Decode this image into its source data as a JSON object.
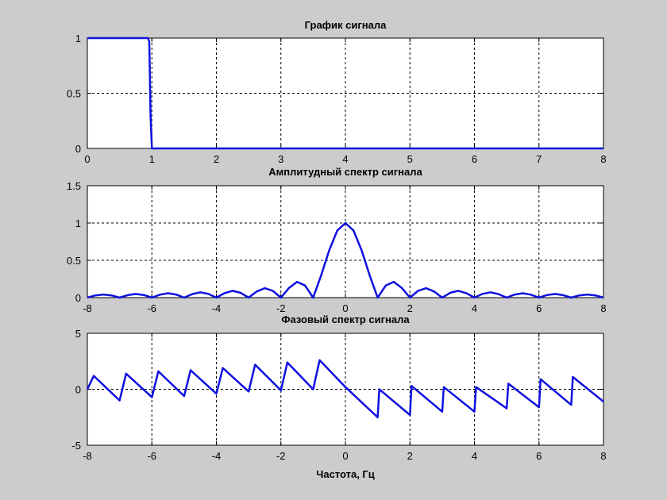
{
  "chart_data": [
    {
      "type": "line",
      "title": "График сигнала",
      "xlabel": "",
      "ylabel": "",
      "xlim": [
        0,
        8
      ],
      "ylim": [
        0,
        1
      ],
      "xticks": [
        0,
        1,
        2,
        3,
        4,
        5,
        6,
        7,
        8
      ],
      "yticks": [
        0,
        0.5,
        1
      ],
      "xticklabels": [
        "0",
        "1",
        "2",
        "3",
        "4",
        "5",
        "6",
        "7",
        "8"
      ],
      "yticklabels": [
        "0",
        "0.5",
        "1"
      ],
      "grid": true,
      "series": [
        {
          "color": "#1010e0",
          "x": [
            0,
            0.94,
            0.96,
            0.98,
            1.0,
            1.02,
            8
          ],
          "y": [
            1,
            1,
            0.97,
            0.3,
            0.0,
            0.0,
            0.0
          ]
        }
      ]
    },
    {
      "type": "line",
      "title": "Амплитудный спектр сигнала",
      "xlabel": "",
      "ylabel": "",
      "xlim": [
        -8,
        8
      ],
      "ylim": [
        0,
        1.5
      ],
      "xticks": [
        -8,
        -6,
        -4,
        -2,
        0,
        2,
        4,
        6,
        8
      ],
      "yticks": [
        0,
        0.5,
        1,
        1.5
      ],
      "xticklabels": [
        "-8",
        "-6",
        "-4",
        "-2",
        "0",
        "2",
        "4",
        "6",
        "8"
      ],
      "yticklabels": [
        "0",
        "0.5",
        "1",
        "1.5"
      ],
      "grid": true,
      "series": [
        {
          "color": "#1010e0",
          "x": [
            -8,
            -7.75,
            -7.5,
            -7.25,
            -7,
            -6.75,
            -6.5,
            -6.25,
            -6,
            -5.75,
            -5.5,
            -5.25,
            -5,
            -4.75,
            -4.5,
            -4.25,
            -4,
            -3.75,
            -3.5,
            -3.25,
            -3,
            -2.75,
            -2.5,
            -2.25,
            -2,
            -1.75,
            -1.5,
            -1.25,
            -1,
            -0.75,
            -0.5,
            -0.25,
            0,
            0.25,
            0.5,
            0.75,
            1,
            1.25,
            1.5,
            1.75,
            2,
            2.25,
            2.5,
            2.75,
            3,
            3.25,
            3.5,
            3.75,
            4,
            4.25,
            4.5,
            4.75,
            5,
            5.25,
            5.5,
            5.75,
            6,
            6.25,
            6.5,
            6.75,
            7,
            7.25,
            7.5,
            7.75,
            8
          ],
          "y": [
            0,
            0.03,
            0.042,
            0.03,
            0,
            0.033,
            0.049,
            0.035,
            0,
            0.039,
            0.058,
            0.041,
            0,
            0.047,
            0.071,
            0.05,
            0,
            0.06,
            0.091,
            0.065,
            0,
            0.082,
            0.127,
            0.09,
            0,
            0.129,
            0.212,
            0.162,
            0,
            0.3,
            0.637,
            0.9,
            1.0,
            0.9,
            0.637,
            0.3,
            0,
            0.162,
            0.212,
            0.129,
            0,
            0.09,
            0.127,
            0.082,
            0,
            0.065,
            0.091,
            0.06,
            0,
            0.05,
            0.071,
            0.047,
            0,
            0.041,
            0.058,
            0.039,
            0,
            0.035,
            0.049,
            0.033,
            0,
            0.03,
            0.042,
            0.03,
            0
          ]
        }
      ]
    },
    {
      "type": "line",
      "title": "Фазовый спектр сигнала",
      "xlabel": "Частота,  Гц",
      "ylabel": "",
      "xlim": [
        -8,
        8
      ],
      "ylim": [
        -5,
        5
      ],
      "xticks": [
        -8,
        -6,
        -4,
        -2,
        0,
        2,
        4,
        6,
        8
      ],
      "yticks": [
        -5,
        0,
        5
      ],
      "xticklabels": [
        "-8",
        "-6",
        "-4",
        "-2",
        "0",
        "2",
        "4",
        "6",
        "8"
      ],
      "yticklabels": [
        "-5",
        "0",
        "5"
      ],
      "grid": true,
      "series": [
        {
          "color": "#1010e0",
          "x": [
            -8,
            -7.8,
            -7,
            -6.8,
            -6,
            -5.8,
            -5,
            -4.8,
            -4,
            -3.8,
            -3,
            -2.8,
            -2,
            -1.8,
            -1,
            -0.8,
            0,
            1,
            1.05,
            2,
            2.05,
            3,
            3.05,
            4,
            4.05,
            5,
            5.05,
            6,
            6.05,
            7,
            7.05,
            8
          ],
          "y": [
            0,
            1.2,
            -1.0,
            1.4,
            -0.7,
            1.6,
            -0.6,
            1.7,
            -0.4,
            1.9,
            -0.2,
            2.2,
            -0.1,
            2.4,
            0.0,
            2.6,
            0.2,
            -2.5,
            0.0,
            -2.3,
            0.3,
            -2.0,
            0.2,
            -2.0,
            0.2,
            -1.7,
            0.5,
            -1.6,
            0.9,
            -1.4,
            1.1,
            -1.1
          ]
        }
      ]
    }
  ]
}
